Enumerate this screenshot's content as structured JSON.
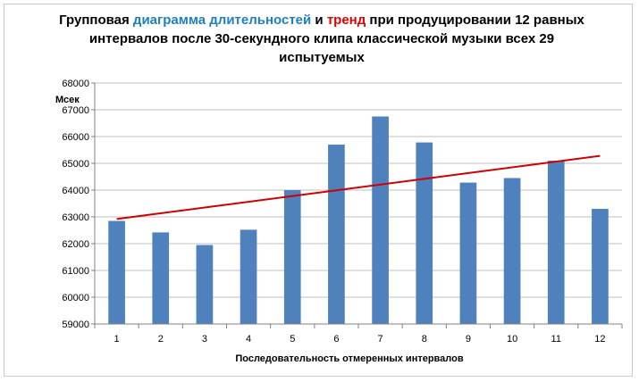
{
  "title": {
    "part1": "Групповая ",
    "part2_blue": "диаграмма длительностей",
    "part3": " и ",
    "part4_red": "тренд",
    "part5": " при продуцировании 12 равных интервалов после 30-секундного клипа классической музыки всех 29 испытуемых"
  },
  "chart_data": {
    "type": "bar",
    "categories": [
      "1",
      "2",
      "3",
      "4",
      "5",
      "6",
      "7",
      "8",
      "9",
      "10",
      "11",
      "12"
    ],
    "values": [
      62850,
      62420,
      61950,
      62520,
      64000,
      65700,
      66750,
      65780,
      64280,
      64450,
      65100,
      63300
    ],
    "series": [
      {
        "values": [
          62850,
          62420,
          61950,
          62520,
          64000,
          65700,
          66750,
          65780,
          64280,
          64450,
          65100,
          63300
        ]
      }
    ],
    "trend": {
      "start": 62920,
      "end": 65280
    },
    "ylabel": "Мсек",
    "xlabel": "Последовательность отмеренных интервалов",
    "ylim": [
      59000,
      68000
    ],
    "yticks": [
      "59000",
      "60000",
      "61000",
      "62000",
      "63000",
      "64000",
      "65000",
      "66000",
      "67000",
      "68000"
    ],
    "colors": {
      "bar": "#4f81bd",
      "trend": "#d00000"
    },
    "grid": true
  }
}
